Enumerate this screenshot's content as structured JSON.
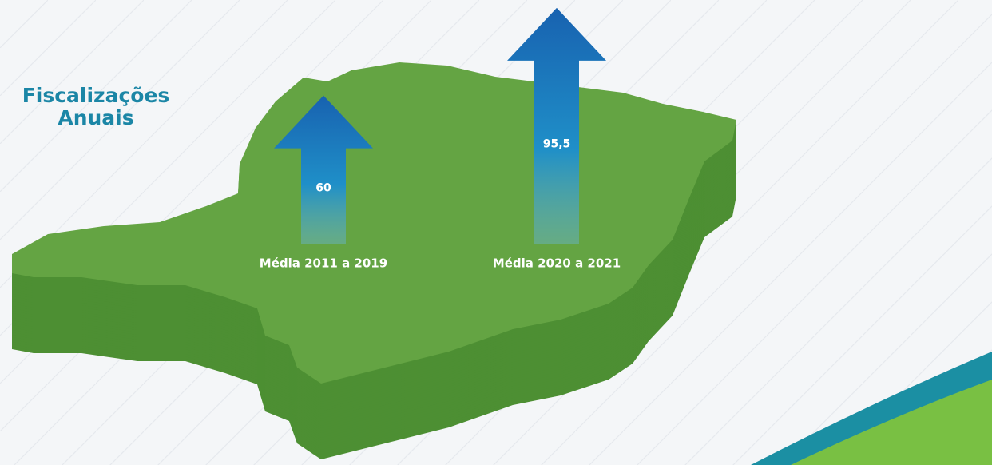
{
  "chart_data": {
    "type": "arrow",
    "title": "Fiscalizações Anuais",
    "categories": [
      "Média 2011 a 2019",
      "Média 2020 a 2021"
    ],
    "values": [
      60,
      95.5
    ],
    "value_labels": [
      "60",
      "95,5"
    ],
    "color": "#1a6cb3"
  }
}
